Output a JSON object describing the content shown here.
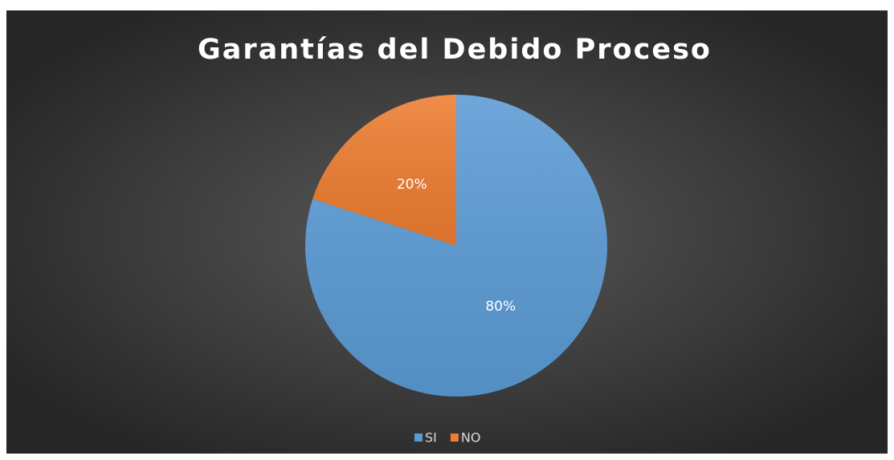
{
  "chart_data": {
    "type": "pie",
    "title": "Garantías del Debido Proceso",
    "categories": [
      "SI",
      "NO"
    ],
    "values": [
      80,
      20
    ],
    "value_labels": [
      "80%",
      "20%"
    ],
    "colors": [
      "#5b9bd5",
      "#ed7d31"
    ],
    "legend": "bottom"
  }
}
